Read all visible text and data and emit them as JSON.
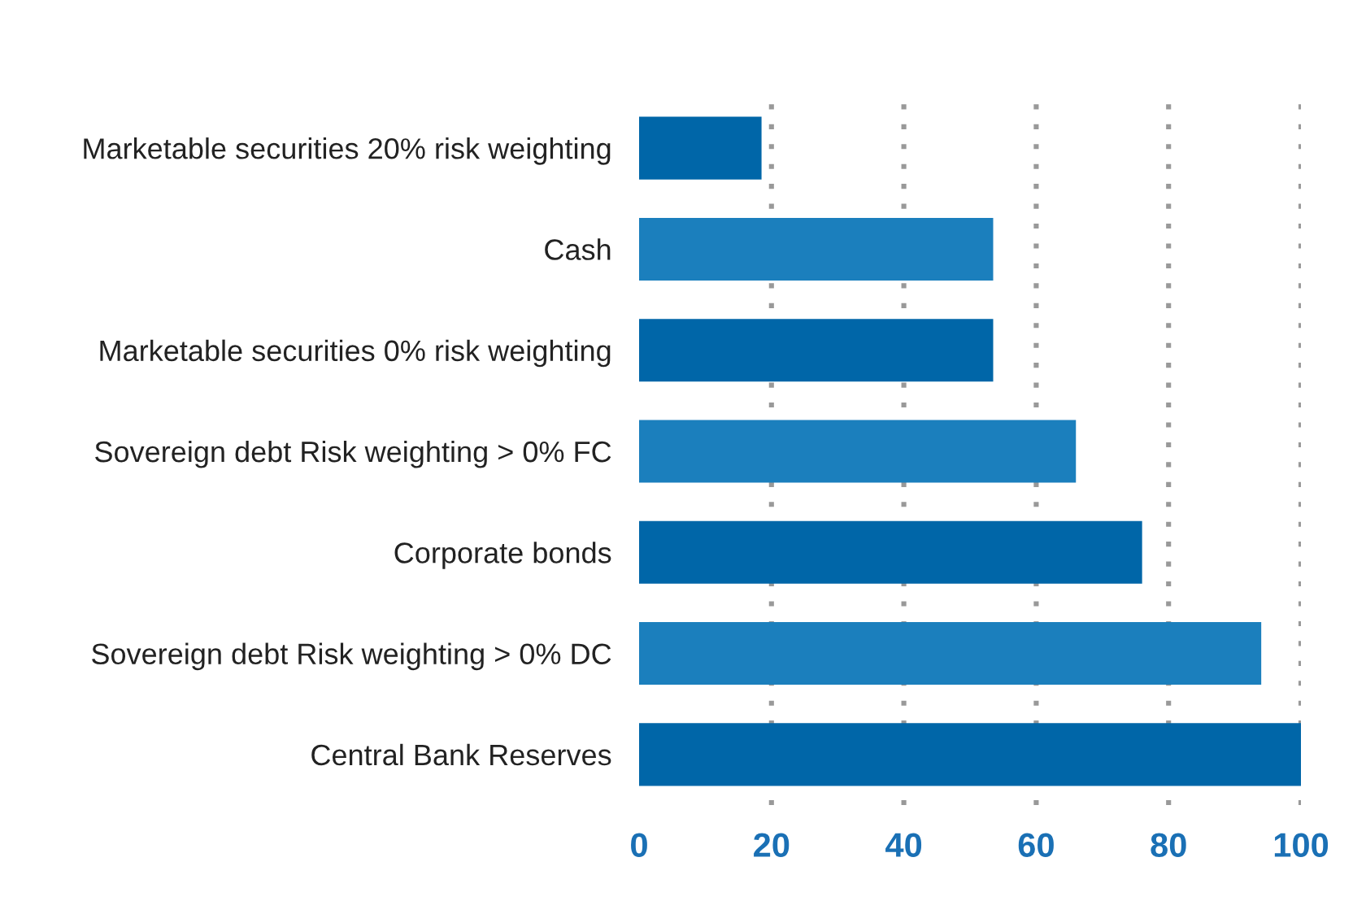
{
  "chart_data": {
    "type": "bar",
    "orientation": "horizontal",
    "categories": [
      "Marketable securities 20% risk weighting",
      "Cash",
      "Marketable securities 0% risk weighting",
      "Sovereign debt Risk weighting > 0% FC",
      "Corporate bonds",
      "Sovereign debt Risk weighting > 0% DC",
      "Central Bank Reserves"
    ],
    "values": [
      18.5,
      53.5,
      53.5,
      66,
      76,
      94,
      100
    ],
    "colors": [
      "#0066a8",
      "#1b7fbd",
      "#0066a8",
      "#1b7fbd",
      "#0066a8",
      "#1b7fbd",
      "#0066a8"
    ],
    "xlim": [
      0,
      100
    ],
    "xticks": [
      0,
      20,
      40,
      60,
      80,
      100
    ],
    "grid": "x"
  }
}
